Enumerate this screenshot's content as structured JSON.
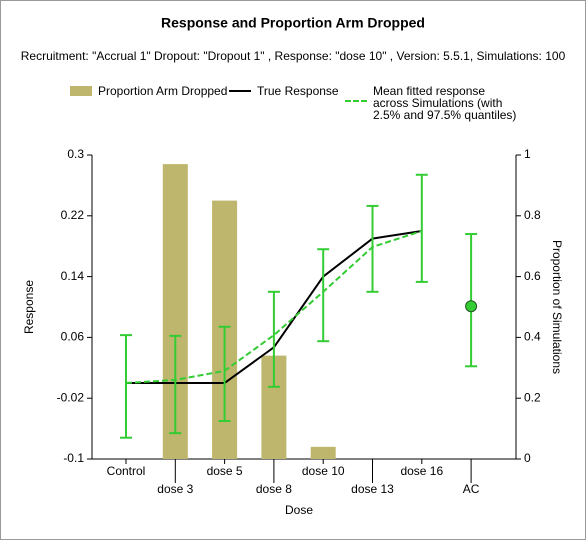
{
  "chart_data": {
    "type": "bar-line",
    "title": "Response and Proportion Arm Dropped",
    "subtitle": "Recruitment: \"Accrual 1\" Dropout: \"Dropout 1\" , Response: \"dose 10\" , Version: 5.5.1, Simulations: 100",
    "x_label": "Dose",
    "y_label": "Response",
    "y2_label": "Proportion of Simulations",
    "categories": [
      "Control",
      "dose 3",
      "dose 5",
      "dose 8",
      "dose 10",
      "dose 13",
      "dose 16",
      "AC"
    ],
    "ylim": [
      -0.1,
      0.3
    ],
    "yticks": [
      -0.1,
      -0.02,
      0.06,
      0.14,
      0.22,
      0.3
    ],
    "y2lim": [
      0,
      1
    ],
    "y2ticks": [
      0,
      0.2,
      0.4,
      0.6,
      0.8,
      1
    ],
    "series": [
      {
        "name": "Proportion Arm Dropped",
        "kind": "bar",
        "axis": "y2",
        "color": "#bdb66c",
        "values": [
          0,
          0.97,
          0.85,
          0.34,
          0.04,
          0,
          0,
          null
        ]
      },
      {
        "name": "True Response",
        "kind": "line",
        "color": "#000000",
        "values": [
          0.0,
          0.0,
          0.0,
          0.047,
          0.14,
          0.19,
          0.2,
          null
        ]
      },
      {
        "name": "Mean fitted response across Simulations (with 2.5% and 97.5% quantiles)",
        "kind": "dashed",
        "color": "#33cc33",
        "values": [
          0.0,
          0.004,
          0.016,
          0.063,
          0.12,
          0.179,
          0.2,
          null
        ],
        "lower": [
          -0.072,
          -0.066,
          -0.05,
          -0.005,
          0.055,
          0.12,
          0.133,
          0.022
        ],
        "upper": [
          0.063,
          0.062,
          0.074,
          0.12,
          0.176,
          0.233,
          0.274,
          0.196
        ],
        "marker": [
          null,
          null,
          null,
          null,
          null,
          null,
          null,
          0.101
        ]
      }
    ]
  }
}
